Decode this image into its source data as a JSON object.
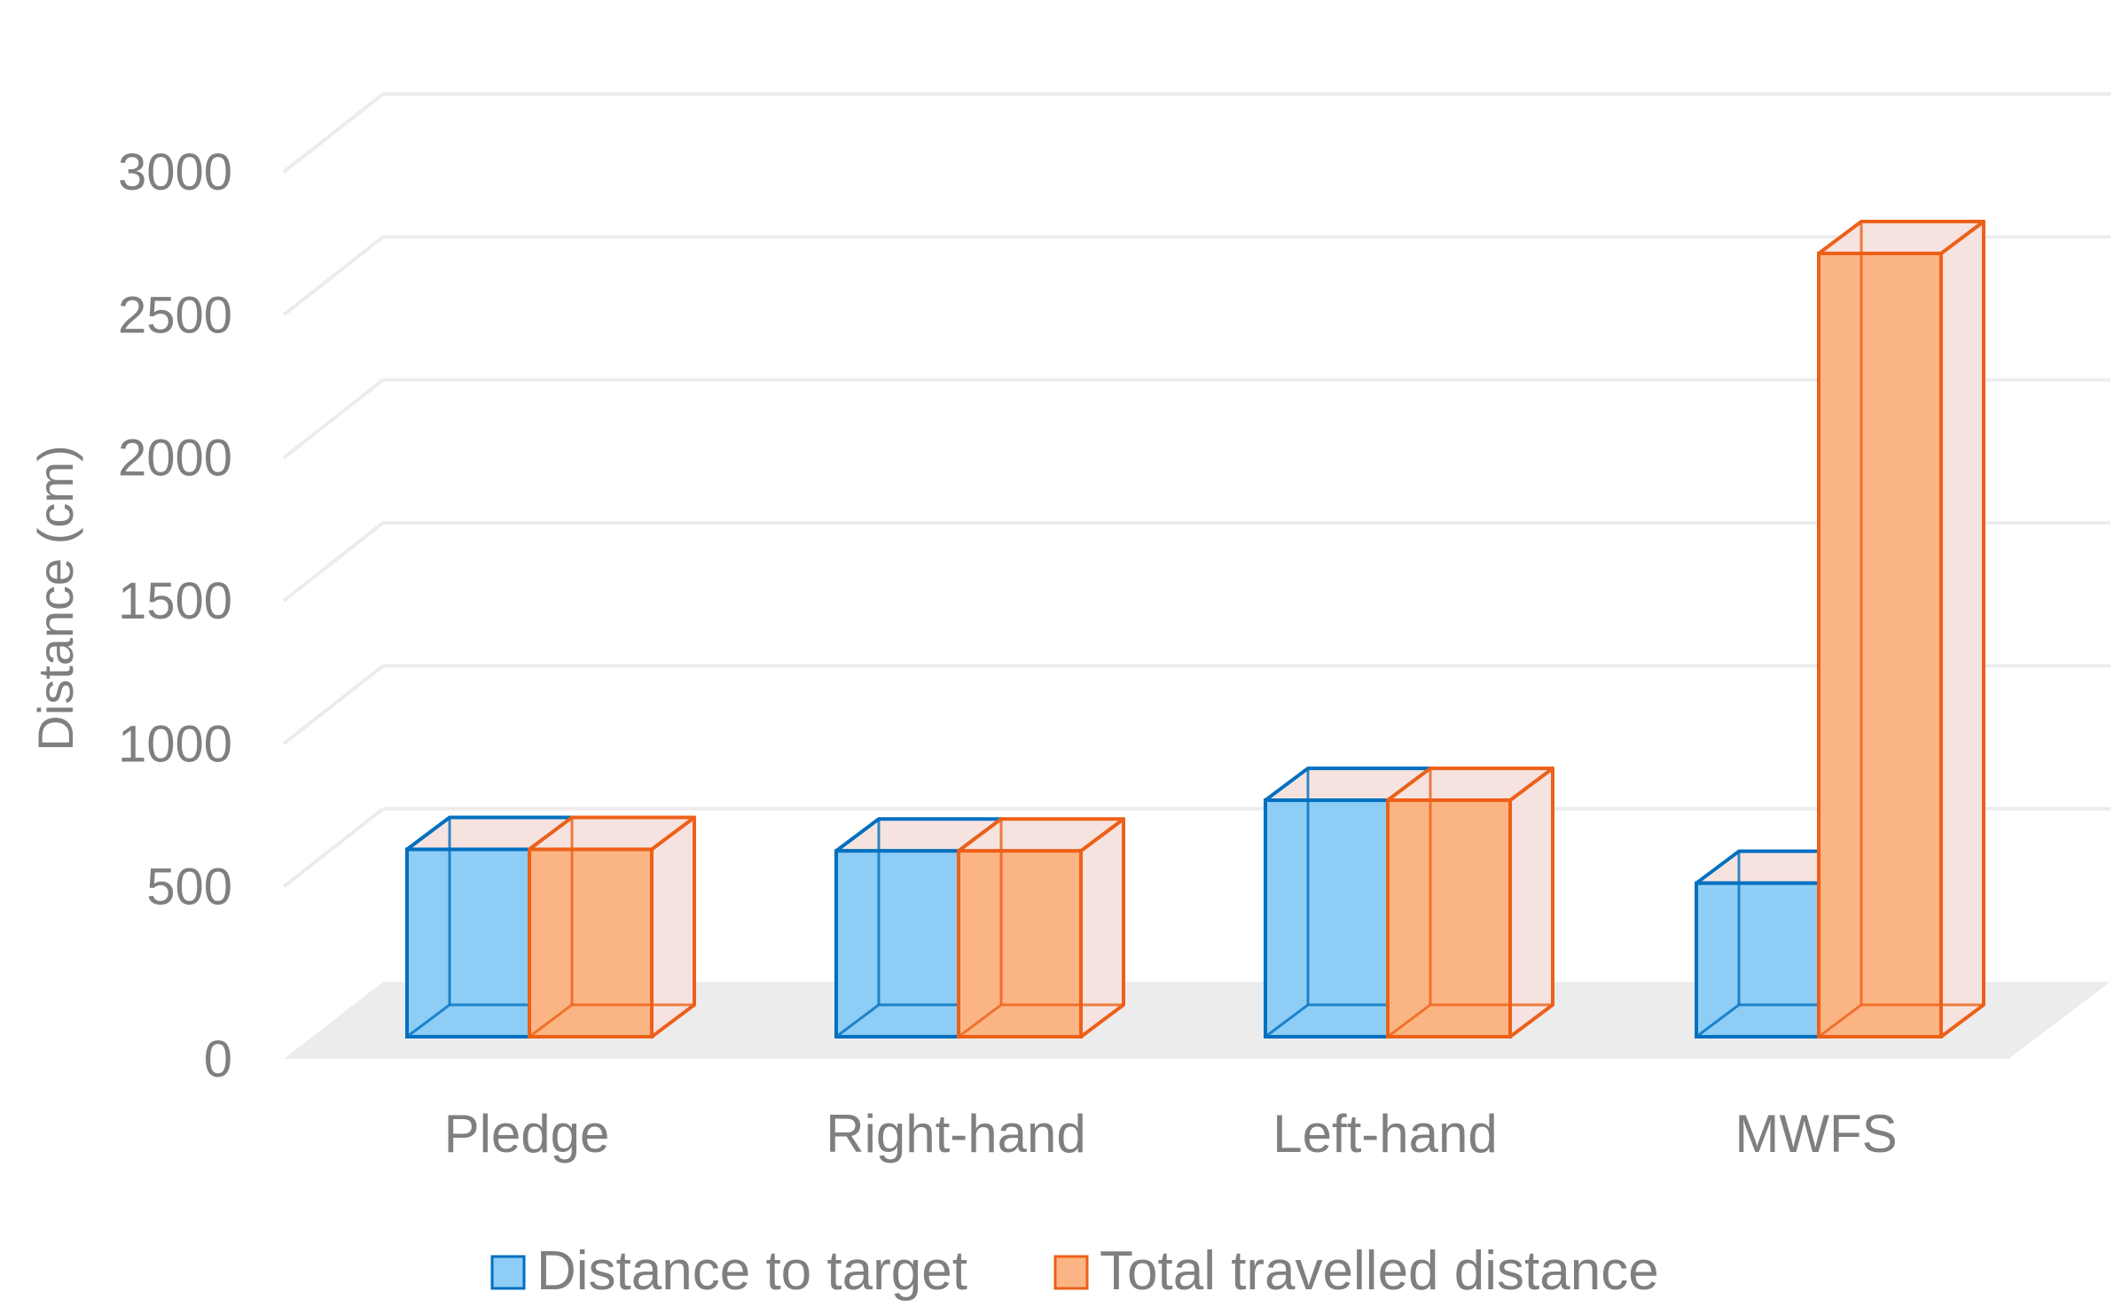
{
  "chart_data": {
    "type": "bar",
    "title": "",
    "xlabel": "",
    "ylabel": "Distance (cm)",
    "ylim": [
      0,
      3000
    ],
    "yticks": [
      0,
      500,
      1000,
      1500,
      2000,
      2500,
      3000
    ],
    "categories": [
      "Pledge",
      "Right-hand",
      "Left-hand",
      "MWFS"
    ],
    "series": [
      {
        "name": "Distance to target",
        "values": [
          610,
          605,
          770,
          500
        ],
        "color": "#0070c0",
        "fill": "#8ecdf5"
      },
      {
        "name": "Total travelled distance",
        "values": [
          610,
          605,
          770,
          2550
        ],
        "color": "#ed6018",
        "fill": "#fbb584"
      }
    ],
    "legend_position": "bottom",
    "grid": true,
    "style": "3d-clustered-bar"
  }
}
